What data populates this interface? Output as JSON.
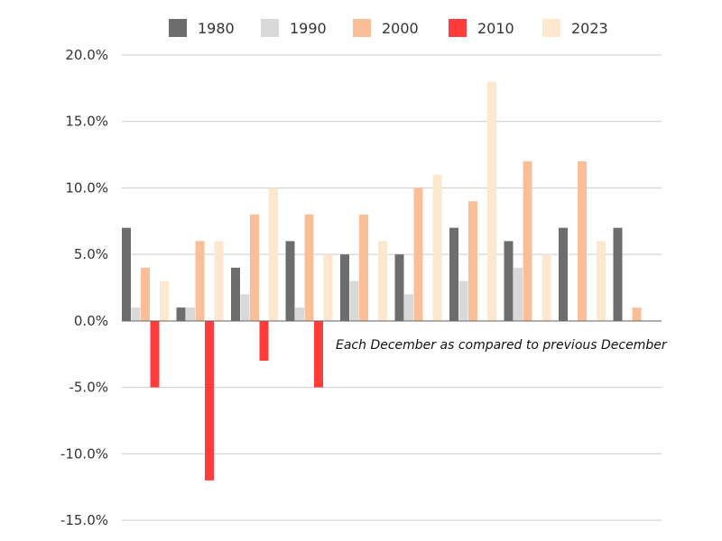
{
  "chart_data": {
    "type": "bar",
    "categories": [
      "",
      "",
      "",
      "",
      "",
      "",
      "",
      "",
      "",
      ""
    ],
    "series": [
      {
        "name": "1980",
        "color": "#6d6d6d",
        "values": [
          7,
          1,
          4,
          6,
          5,
          5,
          7,
          6,
          7,
          7
        ]
      },
      {
        "name": "1990",
        "color": "#d9d9d9",
        "values": [
          1,
          1,
          2,
          1,
          3,
          2,
          3,
          4,
          null,
          null
        ]
      },
      {
        "name": "2000",
        "color": "#fbbf98",
        "values": [
          4,
          6,
          8,
          8,
          8,
          10,
          9,
          12,
          12,
          1
        ]
      },
      {
        "name": "2010",
        "color": "#ff3b3b",
        "values": [
          -5,
          -12,
          -3,
          -5,
          null,
          null,
          null,
          null,
          null,
          null
        ]
      },
      {
        "name": "2023",
        "color": "#fde7cf",
        "values": [
          3,
          6,
          10,
          5,
          6,
          11,
          18,
          5,
          6,
          null
        ]
      }
    ],
    "y_ticks": [
      "20.0%",
      "15.0%",
      "10.0%",
      "5.0%",
      "0.0%",
      "-5.0%",
      "-10.0%",
      "-15.0%"
    ],
    "ylim": [
      -15,
      20
    ],
    "y_unit": "%",
    "grid": true,
    "legend": "top",
    "annotation": "Each December as compared to previous December",
    "title": "",
    "xlabel": "",
    "ylabel": ""
  }
}
